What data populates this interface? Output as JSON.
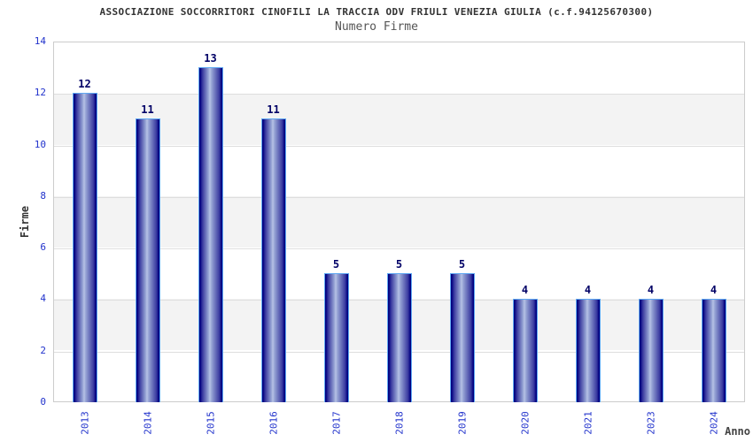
{
  "page": {
    "background": "#ffffff"
  },
  "chart_data": {
    "type": "bar",
    "title": "ASSOCIAZIONE SOCCORRITORI CINOFILI LA TRACCIA ODV FRIULI VENEZIA GIULIA (c.f.94125670300)",
    "subtitle": "Numero Firme",
    "xlabel": "Anno",
    "ylabel": "Firme",
    "categories": [
      "2013",
      "2014",
      "2015",
      "2016",
      "2017",
      "2018",
      "2019",
      "2020",
      "2021",
      "2023",
      "2024"
    ],
    "values": [
      12,
      11,
      13,
      11,
      5,
      5,
      5,
      4,
      4,
      4,
      4
    ],
    "ylim": [
      0,
      14
    ],
    "ytick_step": 2,
    "yticks": [
      "0",
      "2",
      "4",
      "6",
      "8",
      "10",
      "12",
      "14"
    ],
    "grid": "horizontal-bands",
    "legend": "none",
    "colors": {
      "bar_dark": "#000080",
      "bar_light": "#b7c2e6",
      "bar_outline": "#5fa8f2",
      "value_label": "#000066",
      "tick_label": "#2233cc",
      "title": "#333333",
      "subtitle": "#555555",
      "axis_title": "#333333",
      "plot_border": "#cccccc",
      "band_gray": "#f3f3f3",
      "band_white": "#ffffff"
    }
  }
}
